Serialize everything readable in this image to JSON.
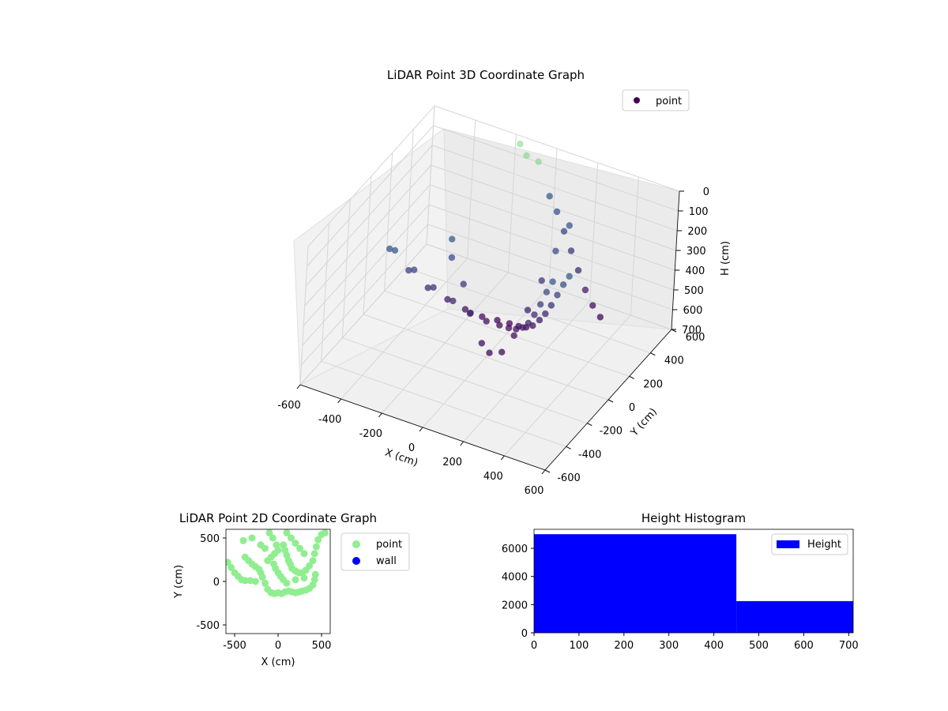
{
  "chart_data": [
    {
      "type": "scatter",
      "projection": "3d",
      "title": "LiDAR Point 3D Coordinate Graph",
      "xlabel": "X (cm)",
      "ylabel": "Y (cm)",
      "zlabel": "H (cm)",
      "xlim": [
        -600,
        600
      ],
      "ylim": [
        -600,
        600
      ],
      "zlim": [
        700,
        0
      ],
      "z_inverted": true,
      "xticks": [
        -600,
        -400,
        -200,
        0,
        200,
        400,
        600
      ],
      "yticks": [
        -600,
        -400,
        -200,
        0,
        200,
        400,
        600
      ],
      "zticks": [
        0,
        100,
        200,
        300,
        400,
        500,
        600,
        700
      ],
      "legend": {
        "position": "top-right",
        "entries": [
          {
            "label": "point",
            "color": "#440154"
          }
        ]
      },
      "colormap": "viridis",
      "grid": true,
      "series": [
        {
          "name": "point",
          "note_points": "dense scan arcs (bowl shape) colored by height; representative samples",
          "points": [
            [
              -350,
              -300,
              100
            ],
            [
              -300,
              -200,
              250
            ],
            [
              -250,
              -100,
              380
            ],
            [
              -200,
              0,
              480
            ],
            [
              -150,
              80,
              560
            ],
            [
              -100,
              150,
              620
            ],
            [
              -50,
              200,
              650
            ],
            [
              0,
              220,
              660
            ],
            [
              50,
              210,
              650
            ],
            [
              100,
              180,
              620
            ],
            [
              150,
              140,
              570
            ],
            [
              200,
              100,
              500
            ],
            [
              250,
              50,
              420
            ],
            [
              300,
              0,
              330
            ],
            [
              350,
              -50,
              230
            ],
            [
              400,
              -100,
              130
            ],
            [
              450,
              -150,
              40
            ],
            [
              -300,
              -350,
              60
            ],
            [
              -250,
              -250,
              200
            ],
            [
              -200,
              -150,
              330
            ],
            [
              -150,
              -50,
              440
            ],
            [
              -100,
              30,
              530
            ],
            [
              -50,
              90,
              590
            ],
            [
              0,
              120,
              610
            ],
            [
              50,
              110,
              600
            ],
            [
              100,
              80,
              570
            ],
            [
              150,
              40,
              520
            ],
            [
              200,
              -10,
              450
            ],
            [
              250,
              -60,
              360
            ],
            [
              300,
              -110,
              260
            ],
            [
              350,
              -160,
              150
            ],
            [
              400,
              -210,
              50
            ],
            [
              -100,
              -200,
              20
            ],
            [
              -120,
              -150,
              150
            ],
            [
              -80,
              -100,
              300
            ],
            [
              -50,
              -80,
              450
            ],
            [
              0,
              -50,
              600
            ],
            [
              30,
              -30,
              650
            ],
            [
              80,
              -10,
              640
            ],
            [
              120,
              20,
              560
            ],
            [
              160,
              60,
              440
            ],
            [
              200,
              100,
              300
            ],
            [
              240,
              140,
              160
            ],
            [
              280,
              180,
              40
            ],
            [
              120,
              300,
              20
            ],
            [
              150,
              320,
              100
            ],
            [
              180,
              340,
              200
            ],
            [
              210,
              360,
              300
            ],
            [
              240,
              380,
              400
            ],
            [
              270,
              400,
              500
            ],
            [
              300,
              420,
              580
            ],
            [
              330,
              440,
              640
            ],
            [
              -60,
              350,
              -150
            ],
            [
              -40,
              380,
              -80
            ],
            [
              0,
              420,
              -40
            ]
          ]
        }
      ]
    },
    {
      "type": "scatter",
      "title": "LiDAR Point 2D Coordinate Graph",
      "xlabel": "X (cm)",
      "ylabel": "Y (cm)",
      "xlim": [
        -600,
        600
      ],
      "ylim": [
        -600,
        600
      ],
      "xticks": [
        -500,
        0,
        500
      ],
      "yticks": [
        -500,
        0,
        500
      ],
      "legend": {
        "position": "outside-right",
        "entries": [
          {
            "label": "point",
            "color": "#90ee90"
          },
          {
            "label": "wall",
            "color": "#0000ff"
          }
        ]
      },
      "series": [
        {
          "name": "point",
          "color": "#90ee90",
          "points": [
            [
              -400,
              470
            ],
            [
              -300,
              500
            ],
            [
              -580,
              220
            ],
            [
              -540,
              160
            ],
            [
              -500,
              100
            ],
            [
              -460,
              60
            ],
            [
              -420,
              20
            ],
            [
              -380,
              10
            ],
            [
              -320,
              10
            ],
            [
              -260,
              0
            ],
            [
              -380,
              280
            ],
            [
              -340,
              240
            ],
            [
              -300,
              200
            ],
            [
              -260,
              170
            ],
            [
              -220,
              140
            ],
            [
              -200,
              100
            ],
            [
              -180,
              50
            ],
            [
              -150,
              -20
            ],
            [
              -120,
              -90
            ],
            [
              -80,
              -130
            ],
            [
              -40,
              -140
            ],
            [
              0,
              -130
            ],
            [
              40,
              -140
            ],
            [
              80,
              -120
            ],
            [
              120,
              -110
            ],
            [
              160,
              -120
            ],
            [
              200,
              -130
            ],
            [
              240,
              -120
            ],
            [
              280,
              -110
            ],
            [
              320,
              -100
            ],
            [
              360,
              -80
            ],
            [
              400,
              -40
            ],
            [
              420,
              20
            ],
            [
              430,
              80
            ],
            [
              -100,
              560
            ],
            [
              -60,
              500
            ],
            [
              -20,
              420
            ],
            [
              0,
              360
            ],
            [
              -40,
              320
            ],
            [
              -80,
              280
            ],
            [
              -120,
              240
            ],
            [
              60,
              420
            ],
            [
              80,
              360
            ],
            [
              100,
              300
            ],
            [
              120,
              240
            ],
            [
              140,
              200
            ],
            [
              160,
              150
            ],
            [
              200,
              120
            ],
            [
              240,
              100
            ],
            [
              280,
              100
            ],
            [
              320,
              130
            ],
            [
              360,
              180
            ],
            [
              400,
              240
            ],
            [
              420,
              320
            ],
            [
              440,
              400
            ],
            [
              460,
              480
            ],
            [
              500,
              540
            ],
            [
              540,
              560
            ],
            [
              100,
              560
            ],
            [
              150,
              500
            ],
            [
              200,
              440
            ],
            [
              250,
              380
            ],
            [
              300,
              320
            ],
            [
              -50,
              200
            ],
            [
              -30,
              150
            ],
            [
              0,
              100
            ],
            [
              30,
              60
            ],
            [
              60,
              20
            ],
            [
              100,
              -20
            ],
            [
              200,
              20
            ],
            [
              300,
              40
            ],
            [
              -150,
              380
            ],
            [
              -200,
              420
            ]
          ]
        },
        {
          "name": "wall",
          "color": "#0000ff",
          "points": []
        }
      ]
    },
    {
      "type": "histogram",
      "title": "Height Histogram",
      "xlim": [
        0,
        710
      ],
      "ylim": [
        0,
        7350
      ],
      "xticks": [
        0,
        100,
        200,
        300,
        400,
        500,
        600,
        700
      ],
      "yticks": [
        0,
        2000,
        4000,
        6000
      ],
      "legend": {
        "position": "top-right",
        "entries": [
          {
            "label": "Height",
            "color": "#0000ff"
          }
        ]
      },
      "bins": [
        {
          "from": 0,
          "to": 450,
          "count": 7000
        },
        {
          "from": 450,
          "to": 710,
          "count": 2250
        }
      ],
      "color": "#0000ff"
    }
  ]
}
